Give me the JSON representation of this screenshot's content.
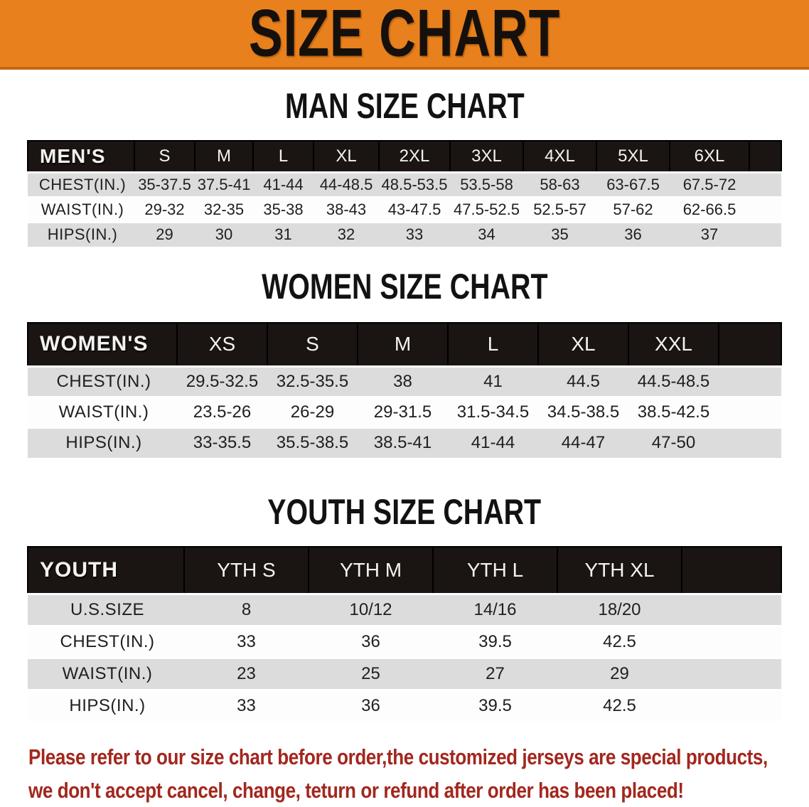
{
  "banner": {
    "title": "SIZE CHART",
    "bg_color": "#E8811D"
  },
  "sections": [
    {
      "heading": "MAN SIZE CHART",
      "table": {
        "group_label": "MEN'S",
        "columns": [
          "S",
          "M",
          "L",
          "XL",
          "2XL",
          "3XL",
          "4XL",
          "5XL",
          "6XL"
        ],
        "rows": [
          {
            "label": "CHEST(IN.)",
            "values": [
              "35-37.5",
              "37.5-41",
              "41-44",
              "44-48.5",
              "48.5-53.5",
              "53.5-58",
              "58-63",
              "63-67.5",
              "67.5-72"
            ]
          },
          {
            "label": "WAIST(IN.)",
            "values": [
              "29-32",
              "32-35",
              "35-38",
              "38-43",
              "43-47.5",
              "47.5-52.5",
              "52.5-57",
              "57-62",
              "62-66.5"
            ]
          },
          {
            "label": "HIPS(IN.)",
            "values": [
              "29",
              "30",
              "31",
              "32",
              "33",
              "34",
              "35",
              "36",
              "37"
            ]
          }
        ]
      }
    },
    {
      "heading": "WOMEN SIZE CHART",
      "table": {
        "group_label": "WOMEN'S",
        "columns": [
          "XS",
          "S",
          "M",
          "L",
          "XL",
          "XXL"
        ],
        "rows": [
          {
            "label": "CHEST(IN.)",
            "values": [
              "29.5-32.5",
              "32.5-35.5",
              "38",
              "41",
              "44.5",
              "44.5-48.5"
            ]
          },
          {
            "label": "WAIST(IN.)",
            "values": [
              "23.5-26",
              "26-29",
              "29-31.5",
              "31.5-34.5",
              "34.5-38.5",
              "38.5-42.5"
            ]
          },
          {
            "label": "HIPS(IN.)",
            "values": [
              "33-35.5",
              "35.5-38.5",
              "38.5-41",
              "41-44",
              "44-47",
              "47-50"
            ]
          }
        ]
      }
    },
    {
      "heading": "YOUTH SIZE CHART",
      "table": {
        "group_label": "YOUTH",
        "columns": [
          "YTH S",
          "YTH M",
          "YTH L",
          "YTH XL"
        ],
        "rows": [
          {
            "label": "U.S.SIZE",
            "values": [
              "8",
              "10/12",
              "14/16",
              "18/20"
            ]
          },
          {
            "label": "CHEST(IN.)",
            "values": [
              "33",
              "36",
              "39.5",
              "42.5"
            ]
          },
          {
            "label": "WAIST(IN.)",
            "values": [
              "23",
              "25",
              "27",
              "29"
            ]
          },
          {
            "label": "HIPS(IN.)",
            "values": [
              "33",
              "36",
              "39.5",
              "42.5"
            ]
          }
        ]
      }
    }
  ],
  "footnote": {
    "line1": "Please refer to our size chart before order,the customized jerseys are special products,",
    "line2": "we don't accept cancel, change, teturn or refund after order has been placed!",
    "color": "#A2271E"
  },
  "colors": {
    "banner_orange": "#E8811D",
    "banner_border": "#C4670E",
    "header_black": "#1A1512",
    "row_gray": "#DCDCDC",
    "row_white": "#FDFDFD",
    "text_dark": "#1F1F1F"
  }
}
